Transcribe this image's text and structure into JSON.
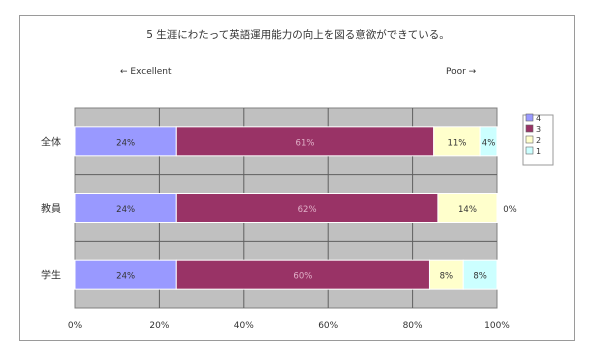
{
  "chart_data": {
    "type": "bar",
    "stacked": true,
    "orientation": "horizontal",
    "title": "5 生涯にわたって英語運用能力の向上を図る意欲ができている。",
    "subtitle_left": "← Excellent",
    "subtitle_right": "Poor →",
    "categories": [
      "全体",
      "教員",
      "学生"
    ],
    "series": [
      {
        "name": "4",
        "color": "#9999ff",
        "values": [
          24,
          24,
          24
        ],
        "labels": [
          "24%",
          "24%",
          "24%"
        ]
      },
      {
        "name": "3",
        "color": "#993366",
        "values": [
          61,
          62,
          60
        ],
        "labels": [
          "61%",
          "62%",
          "60%"
        ]
      },
      {
        "name": "2",
        "color": "#ffffcc",
        "values": [
          11,
          14,
          8
        ],
        "labels": [
          "11%",
          "14%",
          "8%"
        ]
      },
      {
        "name": "1",
        "color": "#ccffff",
        "values": [
          4,
          0,
          8
        ],
        "labels": [
          "4%",
          "0%",
          "8%"
        ]
      }
    ],
    "xlim": [
      0,
      100
    ],
    "xticks": [
      "0%",
      "20%",
      "40%",
      "60%",
      "80%",
      "100%"
    ],
    "plot_background": "#c0c0c0",
    "grid": true,
    "legend_position": "right"
  }
}
